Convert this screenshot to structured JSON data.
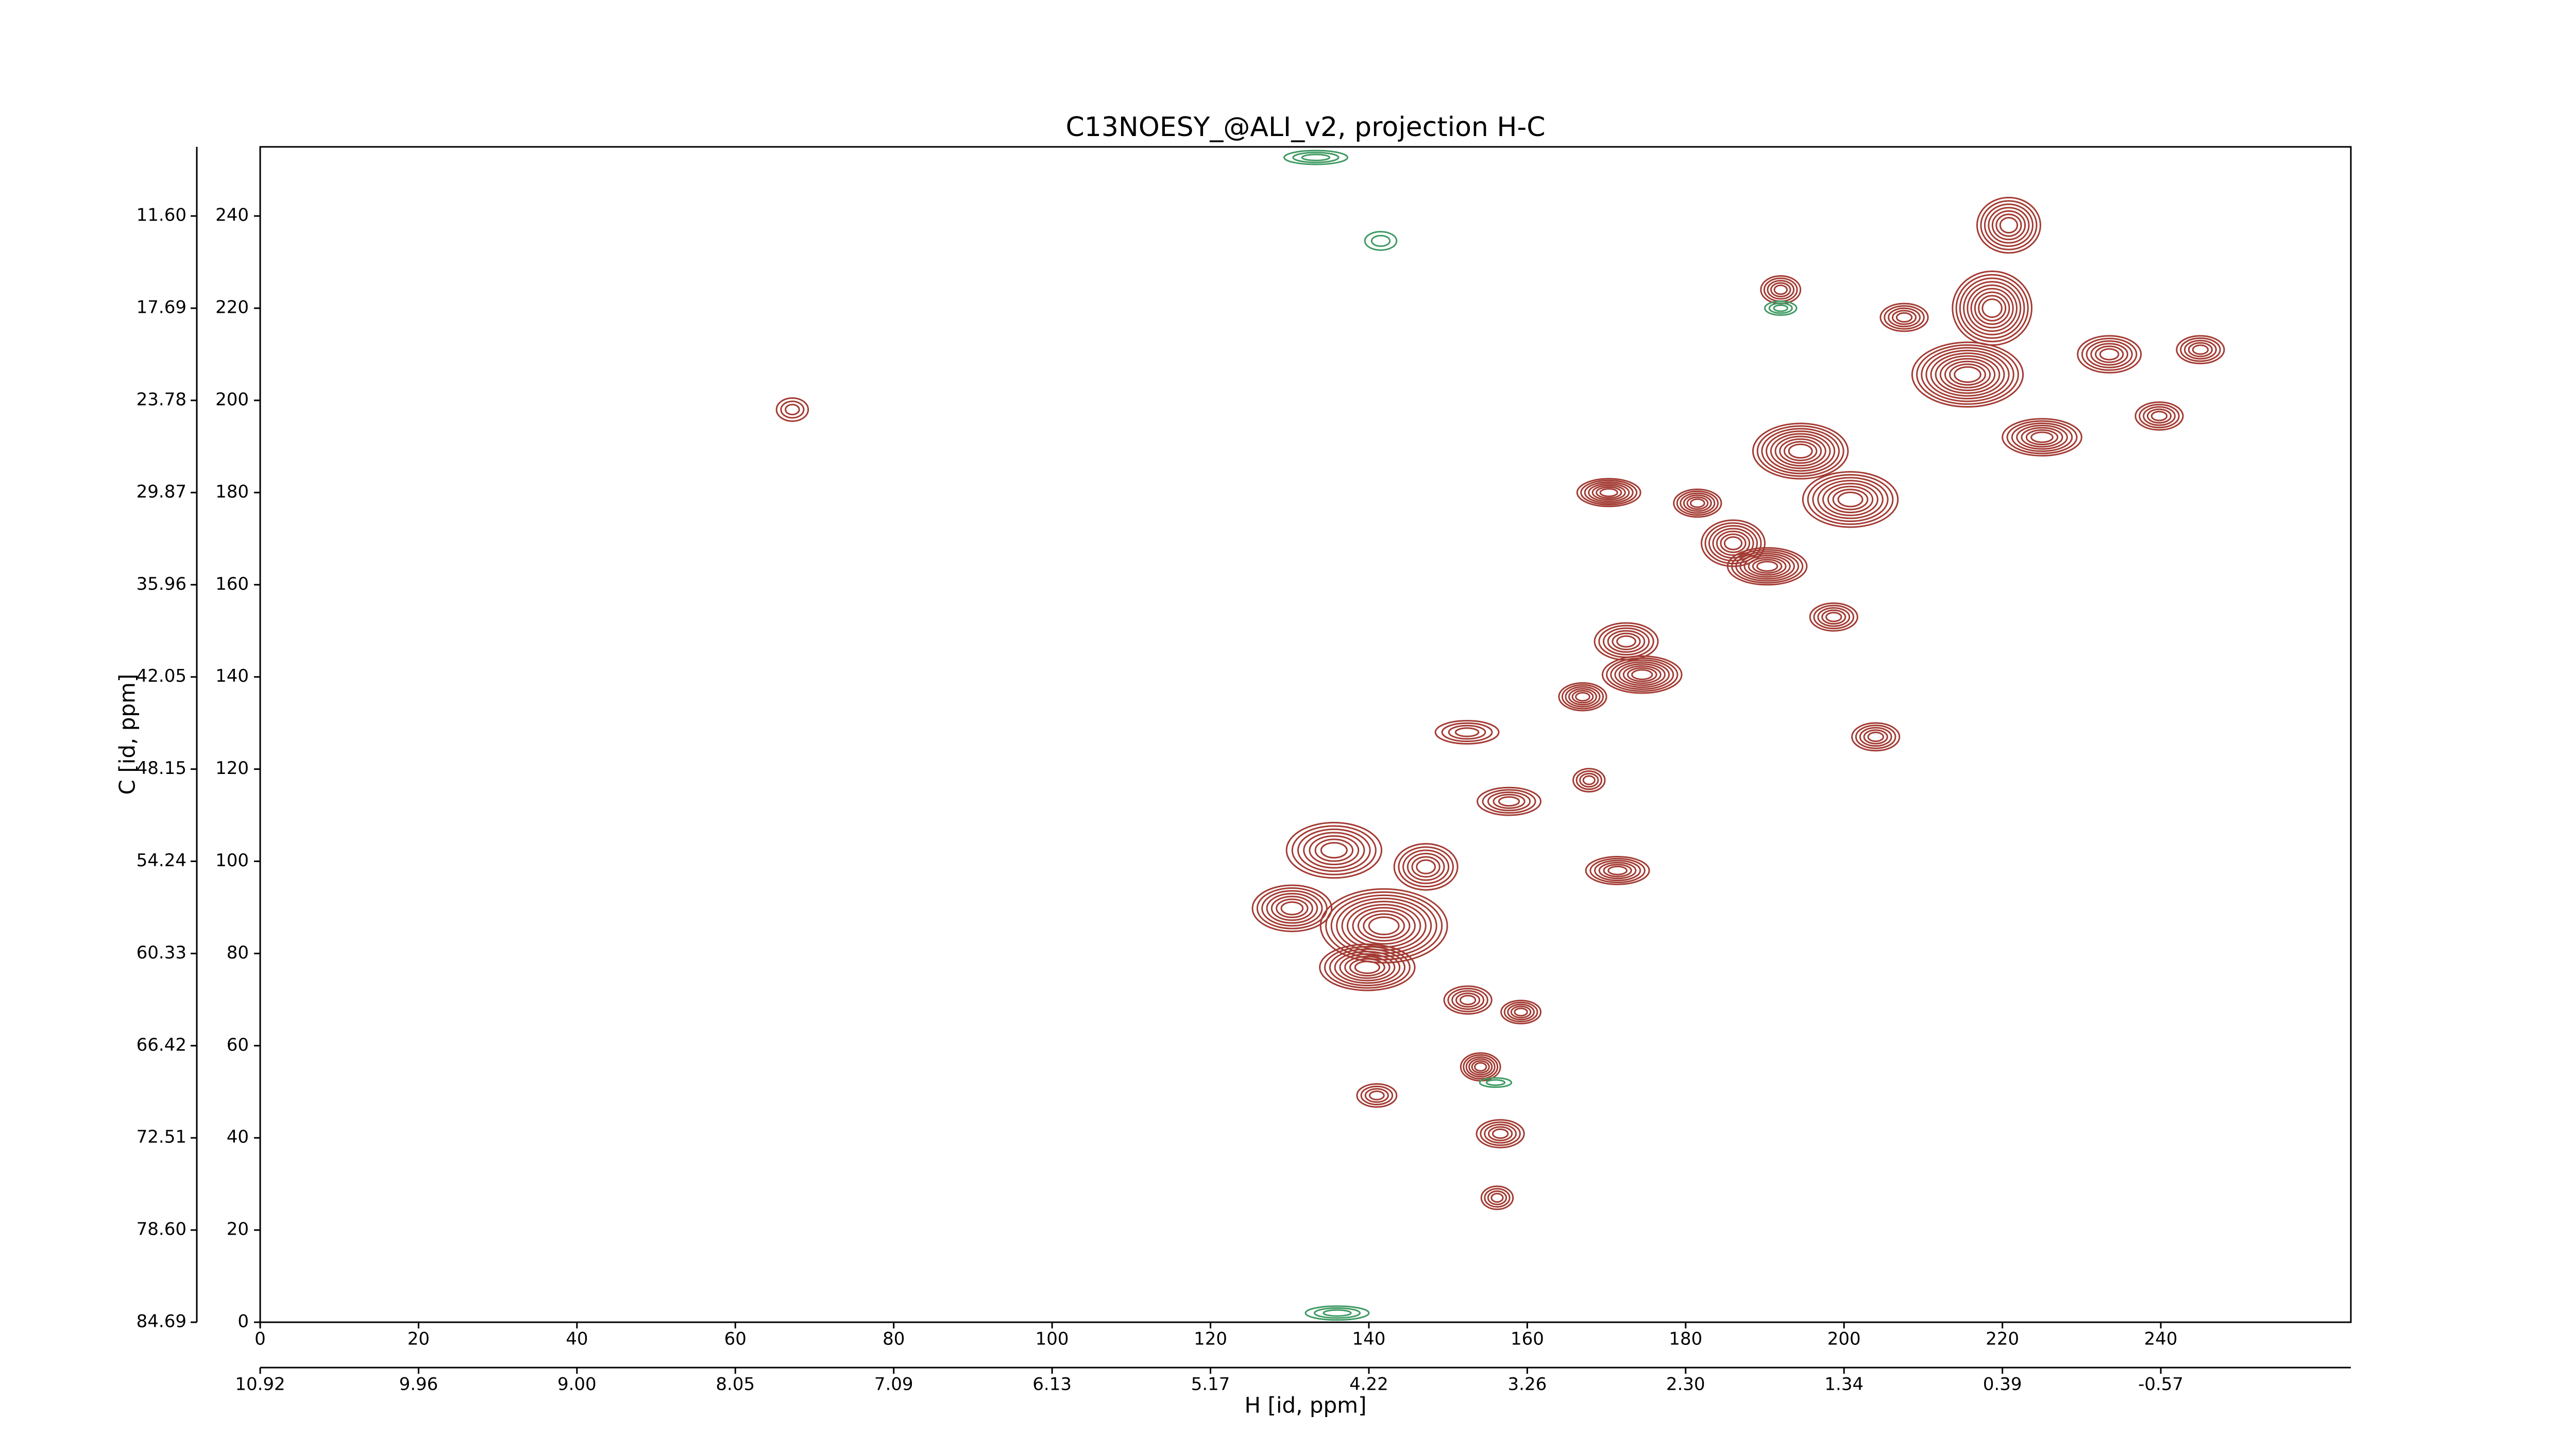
{
  "chart_data": {
    "type": "contour",
    "title": "C13NOESY_@ALI_v2, projection H-C",
    "xlabel": "H [id, ppm]",
    "ylabel": "C [id, ppm]",
    "xlim": [
      0,
      264
    ],
    "ylim": [
      0,
      255
    ],
    "xticks": [
      0,
      20,
      40,
      60,
      80,
      100,
      120,
      140,
      160,
      180,
      200,
      220,
      240
    ],
    "yticks": [
      0,
      20,
      40,
      60,
      80,
      100,
      120,
      140,
      160,
      180,
      200,
      220,
      240
    ],
    "x2ticks": [
      {
        "value": 0,
        "label": "10.92"
      },
      {
        "value": 20,
        "label": "9.96"
      },
      {
        "value": 40,
        "label": "9.00"
      },
      {
        "value": 60,
        "label": "8.05"
      },
      {
        "value": 80,
        "label": "7.09"
      },
      {
        "value": 100,
        "label": "6.13"
      },
      {
        "value": 120,
        "label": "5.17"
      },
      {
        "value": 140,
        "label": "4.22"
      },
      {
        "value": 160,
        "label": "3.26"
      },
      {
        "value": 180,
        "label": "2.30"
      },
      {
        "value": 200,
        "label": "1.34"
      },
      {
        "value": 220,
        "label": "0.39"
      },
      {
        "value": 240,
        "label": "-0.57"
      }
    ],
    "y2ticks": [
      {
        "value": 0,
        "label": "84.69"
      },
      {
        "value": 20,
        "label": "78.60"
      },
      {
        "value": 40,
        "label": "72.51"
      },
      {
        "value": 60,
        "label": "66.42"
      },
      {
        "value": 80,
        "label": "60.33"
      },
      {
        "value": 100,
        "label": "54.24"
      },
      {
        "value": 120,
        "label": "48.15"
      },
      {
        "value": 140,
        "label": "42.05"
      },
      {
        "value": 160,
        "label": "35.96"
      },
      {
        "value": 180,
        "label": "29.87"
      },
      {
        "value": 200,
        "label": "23.78"
      },
      {
        "value": 220,
        "label": "17.69"
      },
      {
        "value": 240,
        "label": "11.60"
      }
    ],
    "color": "#a33b33",
    "negative_color": "#3f9a63",
    "peaks": [
      {
        "x": 220.8,
        "y": 238,
        "w": 4,
        "h": 6,
        "levels": 7
      },
      {
        "x": 218.7,
        "y": 220,
        "w": 5,
        "h": 8,
        "levels": 9
      },
      {
        "x": 215.6,
        "y": 205.6,
        "w": 7,
        "h": 7,
        "levels": 10
      },
      {
        "x": 225,
        "y": 192,
        "w": 5,
        "h": 4,
        "levels": 7
      },
      {
        "x": 233.5,
        "y": 210,
        "w": 4,
        "h": 4,
        "levels": 6
      },
      {
        "x": 245,
        "y": 211,
        "w": 3,
        "h": 3,
        "levels": 5
      },
      {
        "x": 239.8,
        "y": 196.6,
        "w": 3,
        "h": 3,
        "levels": 5
      },
      {
        "x": 207.6,
        "y": 218,
        "w": 3,
        "h": 3,
        "levels": 5
      },
      {
        "x": 192,
        "y": 224,
        "w": 2.5,
        "h": 3,
        "levels": 5
      },
      {
        "x": 194.5,
        "y": 189,
        "w": 6,
        "h": 6,
        "levels": 9
      },
      {
        "x": 200.8,
        "y": 178.5,
        "w": 6,
        "h": 6,
        "levels": 8
      },
      {
        "x": 190.3,
        "y": 164,
        "w": 5,
        "h": 4,
        "levels": 8
      },
      {
        "x": 186,
        "y": 169,
        "w": 4,
        "h": 5,
        "levels": 7
      },
      {
        "x": 170.3,
        "y": 180,
        "w": 4,
        "h": 3,
        "levels": 7
      },
      {
        "x": 181.5,
        "y": 177.7,
        "w": 3,
        "h": 3,
        "levels": 6
      },
      {
        "x": 174.5,
        "y": 140.5,
        "w": 5,
        "h": 4,
        "levels": 8
      },
      {
        "x": 167,
        "y": 135.7,
        "w": 3,
        "h": 3,
        "levels": 6
      },
      {
        "x": 172.5,
        "y": 147.7,
        "w": 4,
        "h": 4,
        "levels": 6
      },
      {
        "x": 198.7,
        "y": 153,
        "w": 3,
        "h": 3,
        "levels": 5
      },
      {
        "x": 204,
        "y": 127,
        "w": 3,
        "h": 3,
        "levels": 5
      },
      {
        "x": 167.8,
        "y": 117.6,
        "w": 2,
        "h": 2.5,
        "levels": 4
      },
      {
        "x": 157.7,
        "y": 113,
        "w": 4,
        "h": 3,
        "levels": 5
      },
      {
        "x": 171.4,
        "y": 98,
        "w": 4,
        "h": 3,
        "levels": 6
      },
      {
        "x": 135.6,
        "y": 102.4,
        "w": 6,
        "h": 6,
        "levels": 7
      },
      {
        "x": 141.9,
        "y": 86,
        "w": 8,
        "h": 8,
        "levels": 10
      },
      {
        "x": 139.8,
        "y": 77,
        "w": 6,
        "h": 5,
        "levels": 8
      },
      {
        "x": 130.3,
        "y": 89.8,
        "w": 5,
        "h": 5,
        "levels": 7
      },
      {
        "x": 147.2,
        "y": 98.8,
        "w": 4,
        "h": 5,
        "levels": 6
      },
      {
        "x": 152.5,
        "y": 69.9,
        "w": 3,
        "h": 3,
        "levels": 5
      },
      {
        "x": 159.2,
        "y": 67.3,
        "w": 2.5,
        "h": 2.5,
        "levels": 5
      },
      {
        "x": 154.1,
        "y": 55.4,
        "w": 2.5,
        "h": 3,
        "levels": 6
      },
      {
        "x": 141,
        "y": 49.2,
        "w": 2.5,
        "h": 2.5,
        "levels": 4
      },
      {
        "x": 156.6,
        "y": 40.9,
        "w": 3,
        "h": 3,
        "levels": 5
      },
      {
        "x": 156.2,
        "y": 27,
        "w": 2,
        "h": 2.5,
        "levels": 4
      },
      {
        "x": 67.2,
        "y": 198,
        "w": 2,
        "h": 2.5,
        "levels": 3
      },
      {
        "x": 152.4,
        "y": 128,
        "w": 4,
        "h": 2.5,
        "levels": 4
      }
    ],
    "negative_peaks": [
      {
        "x": 192,
        "y": 220,
        "w": 2,
        "h": 1.5,
        "levels": 3
      },
      {
        "x": 141.5,
        "y": 234.6,
        "w": 2,
        "h": 2,
        "levels": 2
      },
      {
        "x": 133.3,
        "y": 252.7,
        "w": 4,
        "h": 1.5,
        "levels": 3
      },
      {
        "x": 136,
        "y": 2,
        "w": 4,
        "h": 1.5,
        "levels": 3
      },
      {
        "x": 156,
        "y": 52,
        "w": 2,
        "h": 1,
        "levels": 2
      }
    ]
  }
}
